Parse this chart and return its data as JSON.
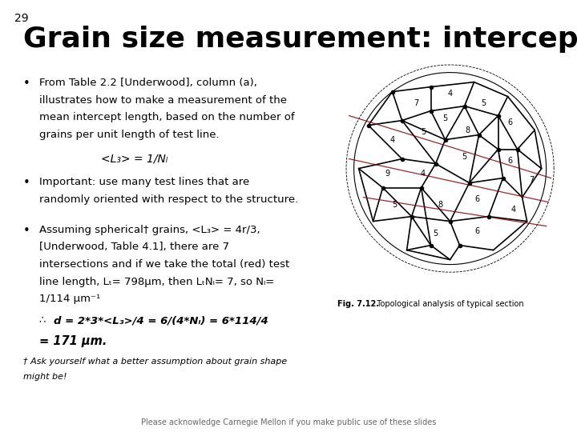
{
  "slide_number": "29",
  "title": "Grain size measurement: intercepts",
  "background_color": "#ffffff",
  "title_fontsize": 26,
  "slide_num_fontsize": 10,
  "bullet1_lines": [
    "From Table 2.2 [Underwood], column (a),",
    "illustrates how to make a measurement of the",
    "mean intercept length, based on the number of",
    "grains per unit length of test line."
  ],
  "formula1": "<L₃> = 1/Nₗ",
  "bullet2_lines": [
    "Important: use many test lines that are",
    "randomly oriented with respect to the structure."
  ],
  "bullet3_lines": [
    "Assuming spherical† grains, <L₃> = 4r/3,",
    "[Underwood, Table 4.1], there are 7",
    "intersections and if we take the total (red) test",
    "line length, Lₜ= 798μm, then LₜNₗ= 7, so Nₗ=",
    "1/114 μm⁻¹"
  ],
  "formula2_a": "∴  ",
  "formula2_b": "d = 2*3*<L₃>/4 = 6/(4*Nₗ) = 6*114/4",
  "formula3": "= 171 μm.",
  "footnote1": "† Ask yourself what a better assumption about grain shape",
  "footnote2": "might be!",
  "footer": "Please acknowledge Carnegie Mellon if you make public use of these slides",
  "text_color": "#000000",
  "footer_fontsize": 7,
  "footnote_fontsize": 8,
  "body_fontsize": 9.5,
  "formula_fontsize": 10,
  "fig_caption_bold": "Fig. 7.12.",
  "fig_caption_rest": "  Topological analysis of typical section",
  "fig_caption_fontsize": 7
}
